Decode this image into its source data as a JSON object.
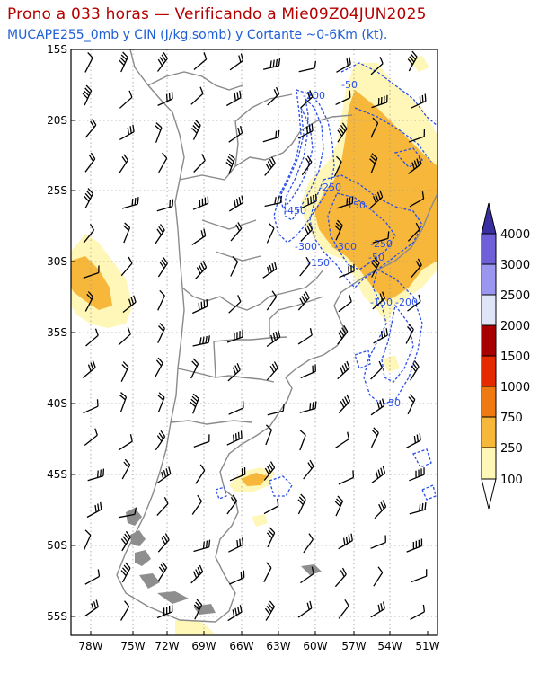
{
  "header": {
    "title": "Prono a 033 horas — Verificando a Mie09Z04JUN2025",
    "subtitle": "MUCAPE255_0mb y CIN (J/kg,somb) y Cortante ~0-6Km (kt)."
  },
  "map": {
    "lat_labels": [
      "15S",
      "20S",
      "25S",
      "30S",
      "35S",
      "40S",
      "45S",
      "50S",
      "55S"
    ],
    "lon_labels": [
      "78W",
      "75W",
      "72W",
      "69W",
      "66W",
      "63W",
      "60W",
      "57W",
      "54W",
      "51W"
    ],
    "cin_contour_labels": [
      "-50",
      "-200",
      "-250",
      "-150",
      "-450",
      "-300",
      "-300",
      "-250",
      "-150",
      "-50",
      "-150",
      "-200",
      "-50"
    ],
    "colors": {
      "coast": "#8a8a8a",
      "cin_contour": "#2a4fe8",
      "barb": "#000000"
    }
  },
  "colorbar": {
    "labels": [
      "100",
      "250",
      "750",
      "1000",
      "1500",
      "2000",
      "2500",
      "3000",
      "4000"
    ],
    "colors": [
      "#fff7b8",
      "#f7b73a",
      "#f07a12",
      "#e62a00",
      "#a80000",
      "#dfe4f7",
      "#9b96ef",
      "#6f5fd8",
      "#3a2fa0"
    ]
  }
}
